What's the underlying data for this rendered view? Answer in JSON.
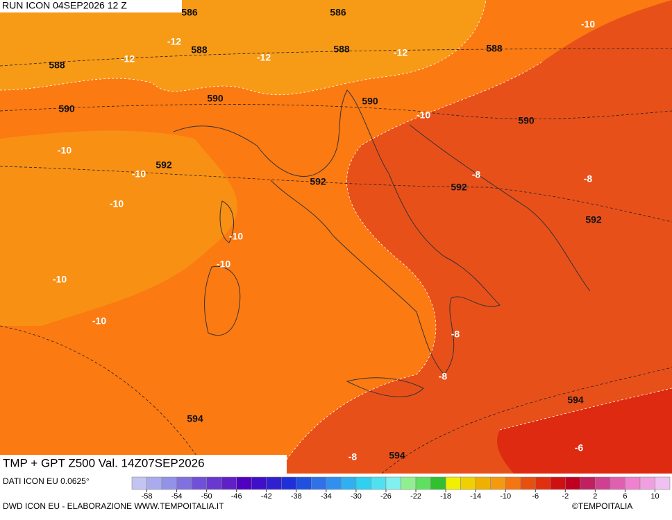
{
  "header": {
    "title": "RUN ICON 04SEP2026 12 Z"
  },
  "footer": {
    "title": "TMP + GPT Z500 Val. 14Z07SEP2026",
    "source": "DATI ICON EU 0.0625°",
    "credit": "DWD ICON EU - ELABORAZIONE WWW.TEMPOITALIA.IT",
    "brand": "©TEMPOITALIA"
  },
  "map": {
    "geopotential_labels": [
      586,
      586,
      588,
      588,
      588,
      588,
      590,
      590,
      590,
      590,
      592,
      592,
      592,
      592,
      594,
      594,
      594
    ],
    "temperature_labels": [
      -12,
      -12,
      -12,
      -12,
      -10,
      -10,
      -10,
      -10,
      -10,
      -10,
      -10,
      -10,
      -10,
      -8,
      -8,
      -8,
      -8,
      -8,
      -6
    ]
  },
  "colorbar": {
    "lim": [
      -60,
      12
    ],
    "ticks": [
      -58,
      -54,
      -50,
      -46,
      -42,
      -38,
      -34,
      -30,
      -26,
      -22,
      -18,
      -14,
      -10,
      -6,
      -2,
      2,
      6,
      10
    ],
    "colors": [
      "#c4c4f2",
      "#aaaaee",
      "#9292e8",
      "#8070e0",
      "#7050d8",
      "#6838d0",
      "#6020c8",
      "#5000c0",
      "#4010c8",
      "#3020d0",
      "#2030d8",
      "#2050e0",
      "#3070e8",
      "#3090f0",
      "#30b0f0",
      "#30d0f0",
      "#50e0f0",
      "#80f0f0",
      "#90f090",
      "#60e060",
      "#30c030",
      "#f0f000",
      "#f0d000",
      "#f0b000",
      "#f59a10",
      "#f57510",
      "#e85010",
      "#e03010",
      "#d01010",
      "#c00020",
      "#c02060",
      "#d04090",
      "#e060b0",
      "#f080d0",
      "#f0a0e0",
      "#f0c0f0"
    ]
  }
}
